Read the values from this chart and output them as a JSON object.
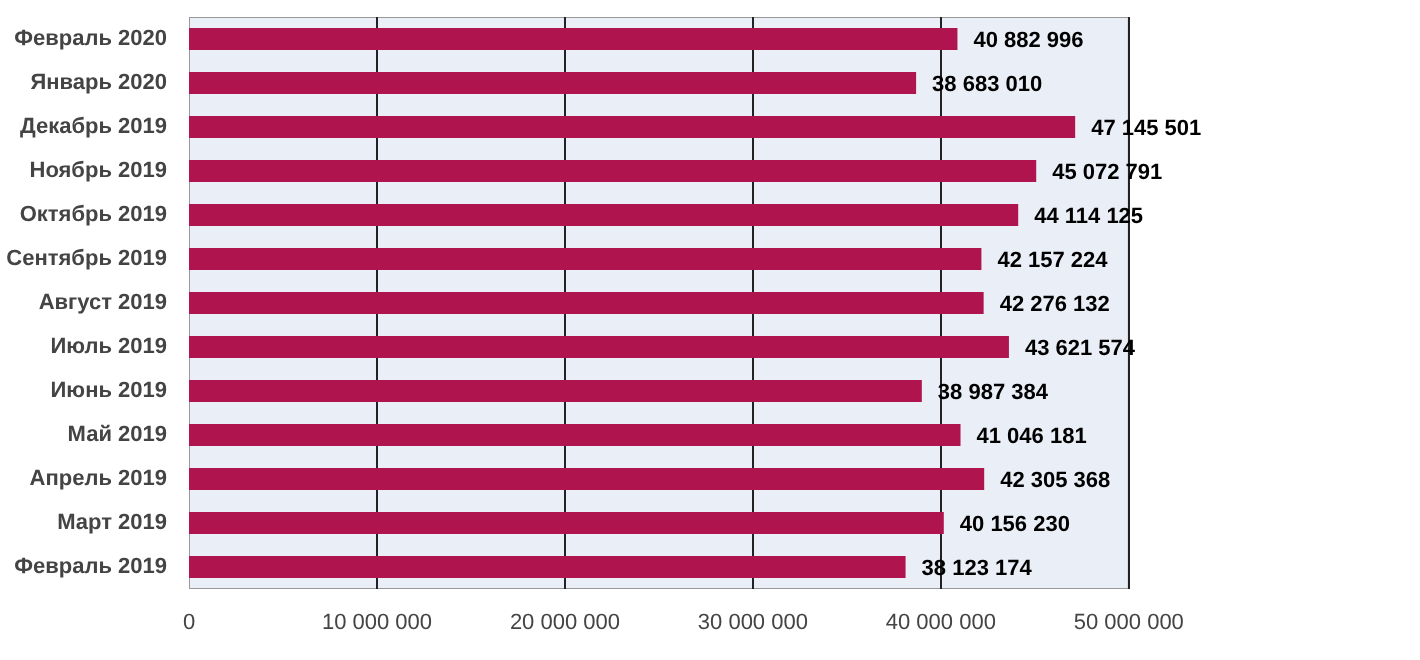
{
  "chart_data": {
    "type": "bar",
    "orientation": "horizontal",
    "categories": [
      "Февраль 2020",
      "Январь 2020",
      "Декабрь 2019",
      "Ноябрь 2019",
      "Октябрь 2019",
      "Сентябрь 2019",
      "Август 2019",
      "Июль 2019",
      "Июнь 2019",
      "Май 2019",
      "Апрель 2019",
      "Март 2019",
      "Февраль 2019"
    ],
    "values": [
      40882996,
      38683010,
      47145501,
      45072791,
      44114125,
      42157224,
      42276132,
      43621574,
      38987384,
      41046181,
      42305368,
      40156230,
      38123174
    ],
    "value_labels": [
      "40 882 996",
      "38 683 010",
      "47 145 501",
      "45 072 791",
      "44 114 125",
      "42 157 224",
      "42 276 132",
      "43 621 574",
      "38 987 384",
      "41 046 181",
      "42 305 368",
      "40 156 230",
      "38 123 174"
    ],
    "color": "#b0144e",
    "xlim": [
      0,
      50000000
    ],
    "xticks": [
      0,
      {
        "value": 10000000,
        "label": "10 000 000"
      },
      {
        "value": 20000000,
        "label": "20 000 000"
      },
      {
        "value": 30000000,
        "label": "30 000 000"
      },
      {
        "value": 40000000,
        "label": "40 000 000"
      },
      {
        "value": 50000000,
        "label": "50 000 000"
      }
    ],
    "grid": "x"
  }
}
